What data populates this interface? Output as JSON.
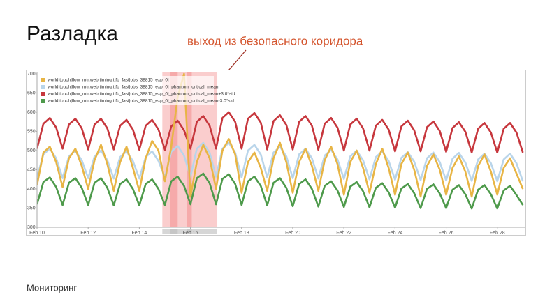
{
  "title": "Разладка",
  "annotation": "выход из безопасного коридора",
  "footer": "Мониторинг",
  "chart_data": {
    "type": "line",
    "x": [
      10,
      10.25,
      10.5,
      10.75,
      11,
      11.25,
      11.5,
      11.75,
      12,
      12.25,
      12.5,
      12.75,
      13,
      13.25,
      13.5,
      13.75,
      14,
      14.25,
      14.5,
      14.75,
      15,
      15.25,
      15.5,
      15.75,
      16,
      16.25,
      16.5,
      16.75,
      17,
      17.25,
      17.5,
      17.75,
      18,
      18.25,
      18.5,
      18.75,
      19,
      19.25,
      19.5,
      19.75,
      20,
      20.25,
      20.5,
      20.75,
      21,
      21.25,
      21.5,
      21.75,
      22,
      22.25,
      22.5,
      22.75,
      23,
      23.25,
      23.5,
      23.75,
      24,
      24.25,
      24.5,
      24.75,
      25,
      25.25,
      25.5,
      25.75,
      26,
      26.25,
      26.5,
      26.75,
      27,
      27.25,
      27.5,
      27.75,
      28,
      28.25,
      28.5,
      28.75,
      29
    ],
    "series": [
      {
        "name": "world|touch|flow_mtr.web.timing.ttfb_fast|obs_38815_exp_0|",
        "color": "#e8b545",
        "values": [
          410,
          495,
          510,
          470,
          405,
          480,
          505,
          460,
          400,
          475,
          515,
          465,
          395,
          470,
          510,
          455,
          395,
          480,
          525,
          500,
          420,
          510,
          640,
          700,
          380,
          470,
          515,
          480,
          400,
          500,
          530,
          490,
          390,
          470,
          495,
          455,
          395,
          480,
          520,
          470,
          390,
          470,
          505,
          460,
          395,
          475,
          510,
          465,
          385,
          470,
          500,
          455,
          390,
          465,
          505,
          455,
          385,
          465,
          495,
          450,
          380,
          460,
          490,
          450,
          385,
          455,
          485,
          445,
          380,
          460,
          490,
          445,
          385,
          455,
          480,
          440,
          400
        ]
      },
      {
        "name": "world|touch|flow_mtr.web.timing.ttfb_fast|obs_38815_exp_0|_phantom_critical_mean",
        "color": "#b9d5ea",
        "values": [
          430,
          490,
          505,
          480,
          428,
          485,
          500,
          475,
          428,
          485,
          500,
          475,
          427,
          483,
          498,
          473,
          427,
          483,
          498,
          473,
          430,
          497,
          512,
          487,
          432,
          505,
          520,
          495,
          432,
          505,
          520,
          495,
          430,
          500,
          515,
          490,
          430,
          495,
          510,
          485,
          428,
          490,
          505,
          480,
          427,
          487,
          502,
          477,
          426,
          485,
          500,
          475,
          425,
          483,
          498,
          473,
          424,
          481,
          496,
          471,
          423,
          480,
          495,
          470,
          422,
          479,
          494,
          469,
          421,
          477,
          492,
          467,
          420,
          477,
          492,
          467,
          420
        ]
      },
      {
        "name": "world|touch|flow_mtr.web.timing.ttfb_fast|obs_38815_exp_0|_phantom_critical_mean+3.0*std",
        "color": "#c7373d",
        "values": [
          505,
          570,
          585,
          560,
          505,
          568,
          583,
          558,
          503,
          568,
          583,
          558,
          503,
          565,
          580,
          555,
          502,
          565,
          580,
          555,
          502,
          563,
          578,
          553,
          505,
          575,
          590,
          565,
          505,
          585,
          600,
          575,
          505,
          583,
          598,
          573,
          503,
          577,
          592,
          567,
          503,
          575,
          590,
          565,
          502,
          570,
          585,
          560,
          500,
          568,
          583,
          558,
          500,
          565,
          580,
          555,
          498,
          563,
          578,
          553,
          498,
          561,
          576,
          551,
          497,
          559,
          574,
          549,
          495,
          557,
          572,
          547,
          495,
          557,
          572,
          547,
          495
        ]
      },
      {
        "name": "world|touch|flow_mtr.web.timing.ttfb_fast|obs_38815_exp_0|_phantom_critical_mean-3.0*std",
        "color": "#4e9a4b",
        "values": [
          360,
          418,
          430,
          405,
          358,
          416,
          428,
          403,
          358,
          416,
          428,
          403,
          357,
          413,
          425,
          400,
          357,
          413,
          425,
          400,
          358,
          420,
          432,
          408,
          360,
          428,
          440,
          415,
          360,
          426,
          438,
          413,
          358,
          420,
          432,
          408,
          357,
          416,
          428,
          403,
          355,
          413,
          425,
          400,
          354,
          408,
          420,
          396,
          353,
          406,
          418,
          394,
          352,
          403,
          415,
          391,
          351,
          401,
          413,
          389,
          350,
          400,
          412,
          388,
          350,
          398,
          410,
          386,
          349,
          398,
          410,
          386,
          349,
          396,
          408,
          384,
          358
        ]
      }
    ],
    "highlights": [
      {
        "from": 14.9,
        "to": 17.05,
        "color": "#f9c4c4"
      },
      {
        "from": 15.2,
        "to": 15.5,
        "color": "#f4a3a3"
      },
      {
        "from": 15.85,
        "to": 16.05,
        "color": "#f4a3a3"
      }
    ],
    "xlim": [
      10,
      29.1
    ],
    "xticks": [
      {
        "value": 10,
        "label": "Feb 10"
      },
      {
        "value": 12,
        "label": "Feb 12"
      },
      {
        "value": 14,
        "label": "Feb 14"
      },
      {
        "value": 16,
        "label": "Feb 16"
      },
      {
        "value": 18,
        "label": "Feb 18"
      },
      {
        "value": 20,
        "label": "Feb 20"
      },
      {
        "value": 22,
        "label": "Feb 22"
      },
      {
        "value": 24,
        "label": "Feb 24"
      },
      {
        "value": 26,
        "label": "Feb 26"
      },
      {
        "value": 28,
        "label": "Feb 28"
      }
    ],
    "ylim": [
      300,
      700
    ],
    "yticks": [
      300,
      350,
      400,
      450,
      500,
      550,
      600,
      650,
      700
    ],
    "legend": "top-left"
  }
}
